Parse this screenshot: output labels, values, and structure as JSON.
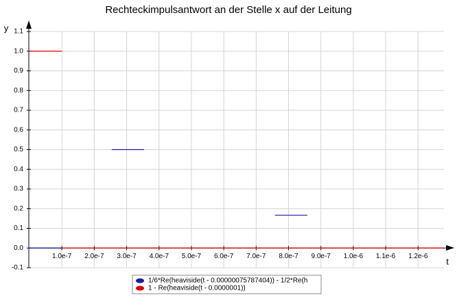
{
  "chart_data": {
    "type": "line",
    "title": "Rechteckimpulsantwort an der Stelle x auf der Leitung",
    "x_label": "t",
    "y_label": "y",
    "xlim": [
      0,
      1.28e-06
    ],
    "ylim": [
      -0.1,
      1.1
    ],
    "xticks": [
      {
        "value": 1e-07,
        "label": "1.0e-7"
      },
      {
        "value": 2e-07,
        "label": "2.0e-7"
      },
      {
        "value": 3e-07,
        "label": "3.0e-7"
      },
      {
        "value": 4e-07,
        "label": "4.0e-7"
      },
      {
        "value": 5e-07,
        "label": "5.0e-7"
      },
      {
        "value": 6e-07,
        "label": "6.0e-7"
      },
      {
        "value": 7e-07,
        "label": "7.0e-7"
      },
      {
        "value": 8e-07,
        "label": "8.0e-7"
      },
      {
        "value": 9e-07,
        "label": "9.0e-7"
      },
      {
        "value": 1e-06,
        "label": "1.0e-6"
      },
      {
        "value": 1.1e-06,
        "label": "1.1e-6"
      },
      {
        "value": 1.2e-06,
        "label": "1.2e-6"
      }
    ],
    "yticks": [
      -0.1,
      {
        "value": 0,
        "label": "0.0"
      },
      0.1,
      0.2,
      0.3,
      0.4,
      0.5,
      0.6,
      0.7,
      0.8,
      0.9,
      {
        "value": 1,
        "label": "1.0"
      },
      1.1
    ],
    "grid": true,
    "legend": "bottom",
    "series": [
      {
        "name": "1/6*Re(heaviside(t - 0.00000075787404)) - 1/2*Re(h",
        "color": "#1c1ca8",
        "x": [
          0,
          1e-07,
          1.8e-07,
          2.54e-07,
          3.54e-07,
          5.5e-07,
          7.58e-07,
          8.58e-07
        ],
        "values": [
          0,
          0,
          null,
          0.5,
          0.5,
          null,
          0.1667,
          0.1667
        ]
      },
      {
        "name": "1 - Re(heaviside(t - 0.0000001))",
        "color": "#e00000",
        "x": [
          0,
          1e-07,
          1e-07,
          1e-07,
          1.28e-06
        ],
        "values": [
          1,
          1,
          null,
          0,
          0
        ]
      }
    ]
  }
}
